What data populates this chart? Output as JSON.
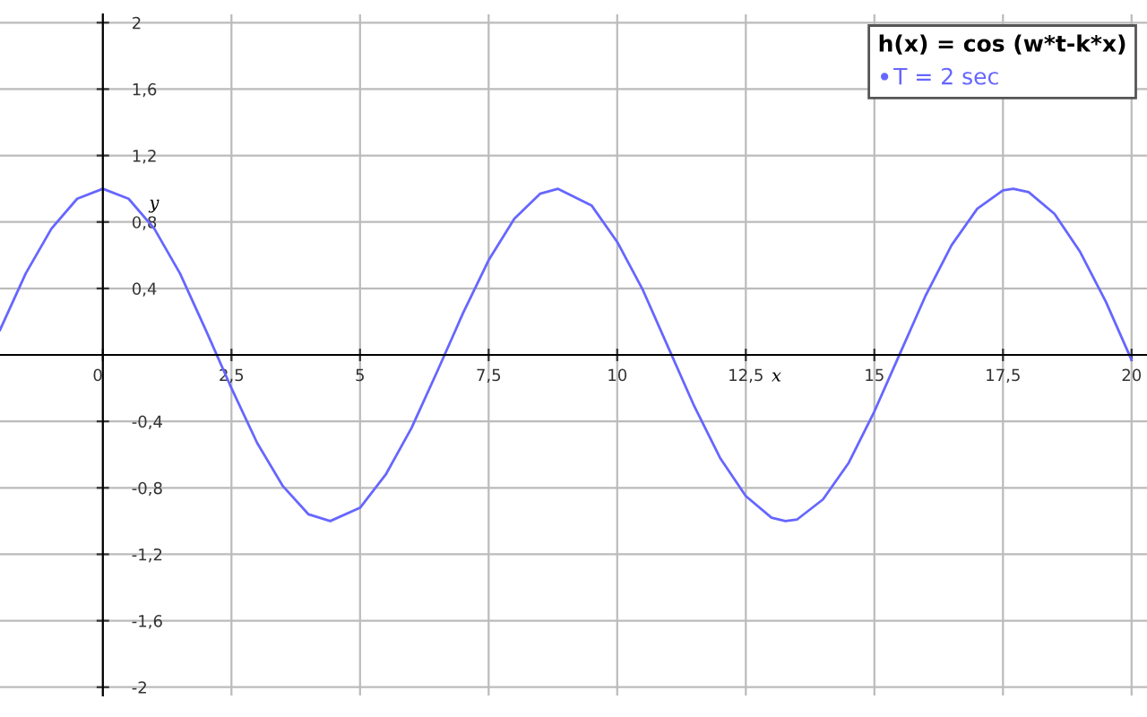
{
  "chart_data": {
    "type": "line",
    "xlabel": "x",
    "ylabel": "y",
    "legend_title": "h(x) = cos (w*t-k*x)",
    "series": [
      {
        "name": "T = 2 sec",
        "color": "#6666ff",
        "x": [
          -2,
          -1.5,
          -1,
          -0.5,
          0,
          0.5,
          1,
          1.5,
          2,
          2.5,
          3,
          3.5,
          4,
          4.42,
          5,
          5.5,
          6,
          6.5,
          7,
          7.5,
          8,
          8.5,
          8.85,
          9.5,
          10,
          10.5,
          11,
          11.5,
          12,
          12.5,
          13,
          13.27,
          13.5,
          14,
          14.5,
          15,
          15.5,
          16,
          16.5,
          17,
          17.5,
          17.7,
          18,
          18.5,
          19,
          19.5,
          20
        ],
        "values": [
          0.15,
          0.49,
          0.76,
          0.94,
          1.0,
          0.94,
          0.76,
          0.49,
          0.15,
          -0.2,
          -0.53,
          -0.79,
          -0.96,
          -1.0,
          -0.92,
          -0.72,
          -0.44,
          -0.1,
          0.25,
          0.57,
          0.82,
          0.97,
          1.0,
          0.9,
          0.68,
          0.39,
          0.04,
          -0.31,
          -0.62,
          -0.85,
          -0.98,
          -1.0,
          -0.99,
          -0.87,
          -0.65,
          -0.34,
          0.01,
          0.36,
          0.66,
          0.88,
          0.99,
          1.0,
          0.98,
          0.85,
          0.62,
          0.32,
          -0.03
        ]
      }
    ],
    "xlim": [
      -2,
      20.3
    ],
    "ylim": [
      -2.05,
      2.05
    ],
    "xticks": [
      0,
      {
        "value": 2.5,
        "label": "2,5"
      },
      5,
      {
        "value": 7.5,
        "label": "7,5"
      },
      10,
      {
        "value": 12.5,
        "label": "12,5"
      },
      15,
      {
        "value": 17.5,
        "label": "17,5"
      },
      20
    ],
    "yticks": [
      {
        "value": -2,
        "label": "-2"
      },
      {
        "value": -1.6,
        "label": "-1,6"
      },
      {
        "value": -1.2,
        "label": "-1,2"
      },
      {
        "value": -0.8,
        "label": "-0,8"
      },
      {
        "value": -0.4,
        "label": "-0,4"
      },
      {
        "value": 0.4,
        "label": "0,4"
      },
      {
        "value": 0.8,
        "label": "0,8"
      },
      {
        "value": 1.2,
        "label": "1,2"
      },
      {
        "value": 1.6,
        "label": "1,6"
      },
      2
    ],
    "grid": true,
    "legend": "top right",
    "marker": "none",
    "line_style": "solid"
  }
}
